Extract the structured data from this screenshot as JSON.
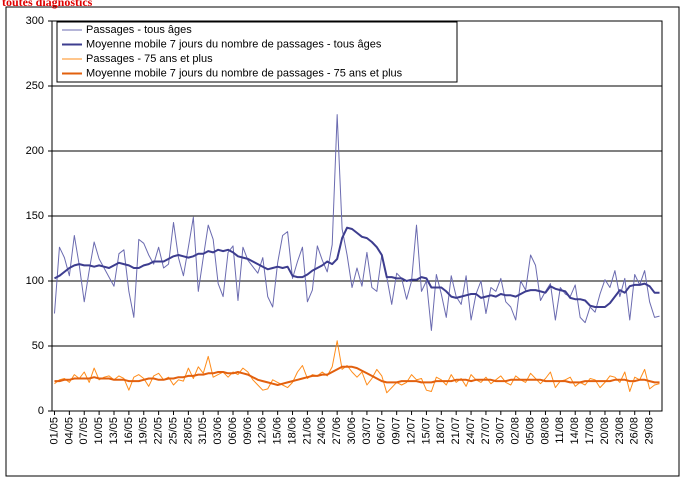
{
  "chart_data": {
    "type": "line",
    "title": "toutes diagnostics",
    "categories": [
      "01/05",
      null,
      null,
      "04/05",
      null,
      null,
      "07/05",
      null,
      null,
      "10/05",
      null,
      null,
      "13/05",
      null,
      null,
      "16/05",
      null,
      null,
      "19/05",
      null,
      null,
      "22/05",
      null,
      null,
      "25/05",
      null,
      null,
      "28/05",
      null,
      null,
      "31/05",
      null,
      null,
      "03/06",
      null,
      null,
      "06/06",
      null,
      null,
      "09/06",
      null,
      null,
      "12/06",
      null,
      null,
      "15/06",
      null,
      null,
      "18/06",
      null,
      null,
      "21/06",
      null,
      null,
      "24/06",
      null,
      null,
      "27/06",
      null,
      null,
      "30/06",
      null,
      null,
      "03/07",
      null,
      null,
      "06/07",
      null,
      null,
      "09/07",
      null,
      null,
      "12/07",
      null,
      null,
      "15/07",
      null,
      null,
      "18/07",
      null,
      null,
      "21/07",
      null,
      null,
      "24/07",
      null,
      null,
      "27/07",
      null,
      null,
      "30/07",
      null,
      null,
      "02/08",
      null,
      null,
      "05/08",
      null,
      null,
      "08/08",
      null,
      null,
      "11/08",
      null,
      null,
      "14/08",
      null,
      null,
      "17/08",
      null,
      null,
      "20/08",
      null,
      null,
      "23/08",
      null,
      null,
      "26/08",
      null,
      null,
      "29/08",
      null,
      null
    ],
    "series": [
      {
        "name": "Passages - tous âges",
        "color": "#6b6bb0",
        "width": 1,
        "values": [
          75,
          126,
          118,
          104,
          135,
          112,
          84,
          108,
          130,
          117,
          110,
          103,
          96,
          121,
          124,
          92,
          72,
          132,
          129,
          120,
          113,
          126,
          110,
          113,
          145,
          118,
          104,
          126,
          149,
          92,
          118,
          143,
          132,
          98,
          88,
          122,
          127,
          85,
          126,
          116,
          111,
          106,
          118,
          88,
          80,
          114,
          135,
          138,
          102,
          115,
          126,
          84,
          93,
          127,
          116,
          107,
          128,
          228,
          140,
          120,
          95,
          110,
          96,
          122,
          95,
          92,
          120,
          103,
          82,
          106,
          102,
          86,
          100,
          143,
          92,
          100,
          62,
          105,
          90,
          72,
          104,
          88,
          82,
          104,
          70,
          90,
          100,
          75,
          95,
          92,
          102,
          84,
          80,
          70,
          100,
          93,
          120,
          112,
          85,
          92,
          98,
          70,
          95,
          90,
          88,
          97,
          72,
          68,
          80,
          76,
          90,
          101,
          95,
          108,
          88,
          102,
          70,
          105,
          97,
          108,
          84,
          72,
          73
        ]
      },
      {
        "name": "Moyenne mobile 7 jours du nombre de passages - tous âges",
        "color": "#3d3d8f",
        "width": 2,
        "values": [
          102,
          104,
          107,
          110,
          112,
          113,
          112,
          112,
          111,
          112,
          111,
          110,
          112,
          114,
          113,
          112,
          110,
          110,
          112,
          113,
          115,
          115,
          115,
          117,
          119,
          120,
          119,
          118,
          119,
          121,
          121,
          123,
          122,
          124,
          123,
          124,
          122,
          119,
          118,
          117,
          115,
          113,
          111,
          109,
          110,
          111,
          110,
          111,
          104,
          103,
          103,
          105,
          108,
          110,
          112,
          115,
          113,
          117,
          133,
          141,
          140,
          137,
          134,
          133,
          130,
          126,
          120,
          103,
          103,
          102,
          102,
          100,
          101,
          101,
          103,
          102,
          95,
          95,
          95,
          92,
          88,
          87,
          88,
          89,
          90,
          90,
          87,
          88,
          89,
          88,
          90,
          89,
          89,
          88,
          90,
          92,
          93,
          93,
          92,
          91,
          96,
          94,
          93,
          92,
          87,
          86,
          86,
          85,
          81,
          80,
          80,
          80,
          83,
          88,
          93,
          91,
          96,
          97,
          97,
          98,
          96,
          91,
          91
        ]
      },
      {
        "name": "Passages - 75 ans et plus",
        "color": "#ff8c1a",
        "width": 1,
        "values": [
          21,
          24,
          25,
          22,
          28,
          25,
          30,
          22,
          33,
          24,
          26,
          27,
          24,
          27,
          25,
          16,
          26,
          28,
          25,
          19,
          27,
          29,
          24,
          26,
          20,
          24,
          23,
          33,
          25,
          34,
          29,
          42,
          26,
          28,
          30,
          26,
          30,
          28,
          33,
          30,
          24,
          20,
          16,
          17,
          24,
          22,
          20,
          18,
          22,
          30,
          35,
          25,
          28,
          27,
          30,
          27,
          34,
          54,
          32,
          35,
          30,
          26,
          30,
          20,
          25,
          32,
          27,
          14,
          18,
          22,
          20,
          22,
          28,
          24,
          25,
          16,
          15,
          26,
          24,
          20,
          28,
          22,
          25,
          19,
          28,
          24,
          22,
          26,
          21,
          24,
          27,
          22,
          20,
          27,
          24,
          22,
          29,
          25,
          21,
          25,
          30,
          18,
          23,
          24,
          26,
          19,
          22,
          20,
          25,
          24,
          18,
          22,
          27,
          26,
          22,
          30,
          15,
          26,
          24,
          32,
          17,
          20,
          21
        ]
      },
      {
        "name": "Moyenne mobile 7 jours du nombre de passages - 75 ans et plus",
        "color": "#e2600e",
        "width": 2,
        "values": [
          23,
          23,
          24,
          24,
          25,
          25,
          25,
          25,
          26,
          25,
          25,
          25,
          24,
          24,
          24,
          23,
          23,
          23,
          24,
          25,
          25,
          24,
          24,
          25,
          25,
          26,
          26,
          27,
          27,
          28,
          28,
          29,
          29,
          30,
          30,
          29,
          29,
          30,
          29,
          28,
          26,
          24,
          23,
          22,
          21,
          20,
          21,
          22,
          23,
          24,
          25,
          26,
          27,
          27,
          28,
          28,
          30,
          32,
          34,
          34,
          34,
          33,
          31,
          29,
          27,
          25,
          23,
          22,
          22,
          22,
          23,
          23,
          23,
          23,
          22,
          22,
          22,
          23,
          23,
          23,
          23,
          24,
          24,
          24,
          23,
          24,
          24,
          24,
          24,
          23,
          23,
          23,
          24,
          24,
          24,
          24,
          24,
          24,
          24,
          23,
          23,
          23,
          23,
          23,
          22,
          22,
          22,
          23,
          23,
          23,
          23,
          23,
          23,
          24,
          24,
          24,
          23,
          23,
          24,
          24,
          23,
          22,
          22
        ]
      }
    ],
    "ylim": [
      0,
      300
    ],
    "yticks": [
      0,
      50,
      100,
      150,
      200,
      250,
      300
    ],
    "grid": true,
    "legend": "top-left"
  }
}
